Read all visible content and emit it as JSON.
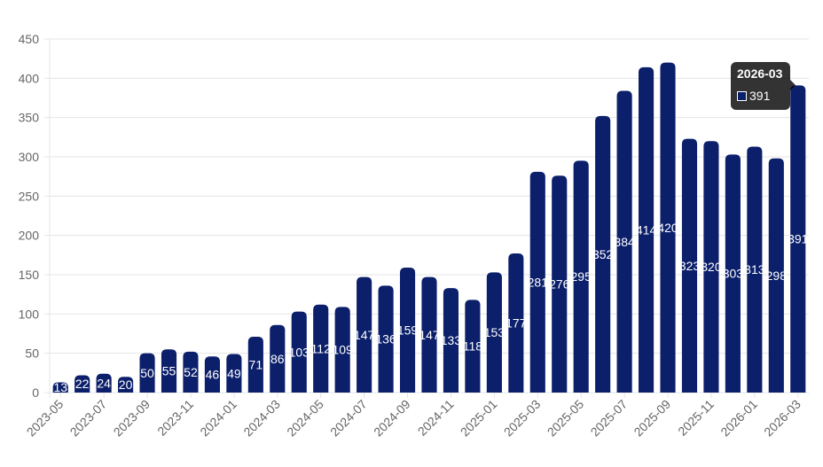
{
  "chart_data": {
    "type": "bar",
    "categories": [
      "2023-05",
      "2023-06",
      "2023-07",
      "2023-08",
      "2023-09",
      "2023-10",
      "2023-11",
      "2023-12",
      "2024-01",
      "2024-02",
      "2024-03",
      "2024-04",
      "2024-05",
      "2024-06",
      "2024-07",
      "2024-08",
      "2024-09",
      "2024-10",
      "2024-11",
      "2024-12",
      "2025-01",
      "2025-02",
      "2025-03",
      "2025-04",
      "2025-05",
      "2025-06",
      "2025-07",
      "2025-08",
      "2025-09",
      "2025-10",
      "2025-11",
      "2025-12",
      "2026-01",
      "2026-02",
      "2026-03"
    ],
    "x_tick_labels": [
      "2023-05",
      "2023-07",
      "2023-09",
      "2023-11",
      "2024-01",
      "2024-03",
      "2024-05",
      "2024-07",
      "2024-09",
      "2024-11",
      "2025-01",
      "2025-03",
      "2025-05",
      "2025-07",
      "2025-09",
      "2025-11",
      "2026-01",
      "2026-03"
    ],
    "values": [
      13,
      22,
      24,
      20,
      50,
      55,
      52,
      46,
      49,
      71,
      86,
      103,
      112,
      109,
      147,
      136,
      159,
      147,
      133,
      118,
      153,
      177,
      281,
      276,
      295,
      352,
      384,
      414,
      420,
      323,
      320,
      303,
      313,
      298,
      391
    ],
    "ylim": [
      0,
      450
    ],
    "y_ticks": [
      0,
      50,
      100,
      150,
      200,
      250,
      300,
      350,
      400,
      450
    ],
    "grid": true,
    "bar_color": "#0b1f6b",
    "tooltip": {
      "title": "2026-03",
      "value": "391"
    }
  }
}
